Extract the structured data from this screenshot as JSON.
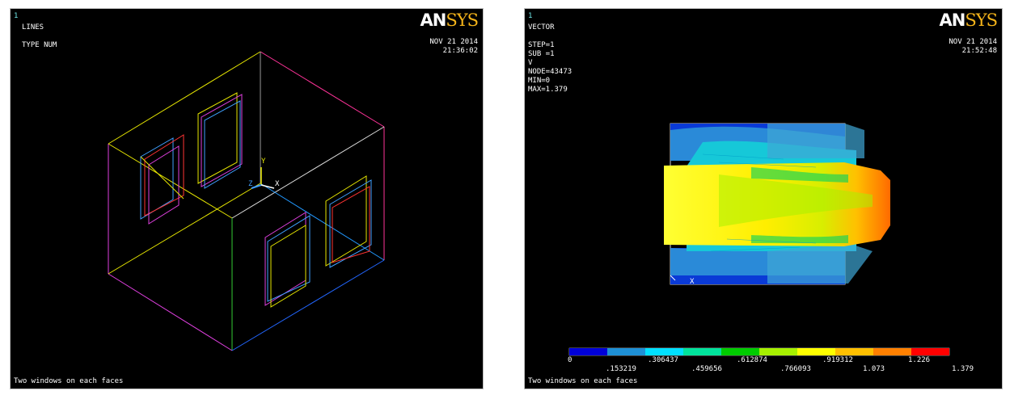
{
  "left_window": {
    "number": "1",
    "plot_type": "LINES",
    "label": "TYPE NUM",
    "logo_an": "AN",
    "logo_sys": "SYS",
    "date": "NOV 21 2014",
    "time": "21:36:02",
    "axis_y": "Y",
    "axis_x": "X",
    "axis_z": "Z",
    "footer": "Two windows on each faces"
  },
  "right_window": {
    "number": "1",
    "plot_type": "VECTOR",
    "step": "STEP=1",
    "sub": "SUB =1",
    "var": "V",
    "node": "NODE=43473",
    "min": "MIN=0",
    "max": "MAX=1.379",
    "logo_an": "AN",
    "logo_sys": "SYS",
    "date": "NOV 21 2014",
    "time": "21:52:48",
    "axis_x": "X",
    "footer": "Two windows on each faces",
    "legend_upper": [
      "0",
      ".306437",
      ".612874",
      ".919312",
      "1.226"
    ],
    "legend_lower": [
      ".153219",
      ".459656",
      ".766093",
      "1.073",
      "1.379"
    ],
    "legend_colors": [
      "#0000d8",
      "#1e90d6",
      "#00e0ff",
      "#00e39c",
      "#00cc00",
      "#a6f000",
      "#ffff00",
      "#ffc000",
      "#ff8000",
      "#ff0000"
    ]
  }
}
